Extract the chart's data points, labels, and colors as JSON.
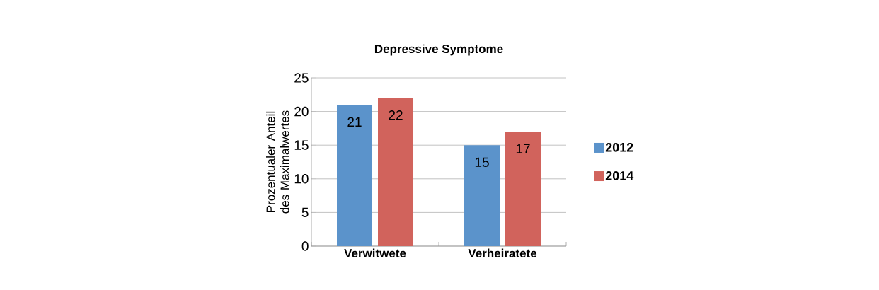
{
  "chart_data": {
    "type": "bar",
    "title": "Depressive Symptome",
    "ylabel": "Prozentualer Anteil des Maximalwertes",
    "categories": [
      "Verwitwete",
      "Verheiratete"
    ],
    "series": [
      {
        "name": "2012",
        "color": "#5b93cb",
        "values": [
          21,
          15
        ]
      },
      {
        "name": "2014",
        "color": "#d1635c",
        "values": [
          22,
          17
        ]
      }
    ],
    "ylim": [
      0,
      25
    ],
    "yticks": [
      0,
      5,
      10,
      15,
      20,
      25
    ],
    "grid": "y",
    "legend": "right",
    "data_labels": true
  }
}
